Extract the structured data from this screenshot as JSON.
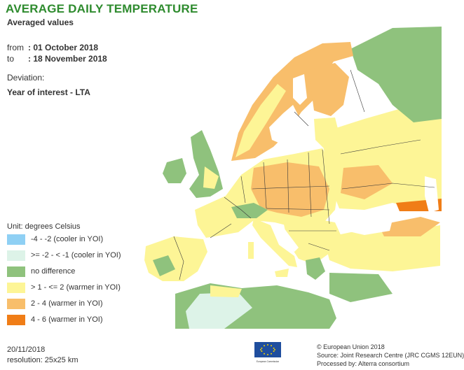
{
  "header": {
    "title": "AVERAGE DAILY TEMPERATURE",
    "subtitle": "Averaged values",
    "from_label": "from",
    "from_value": ": 01 October 2018",
    "to_label": "to",
    "to_value": ": 18 November 2018",
    "deviation_label": "Deviation:",
    "deviation_value": "Year of interest - LTA"
  },
  "legend": {
    "unit": "Unit: degrees Celsius",
    "items": [
      {
        "label": "-4 - -2 (cooler in YOI)",
        "color": "#8fd0f4"
      },
      {
        "label": ">= -2 - < -1 (cooler in YOI)",
        "color": "#ddf3e8"
      },
      {
        "label": "no difference",
        "color": "#8fc27d"
      },
      {
        "label": "> 1 - <= 2 (warmer in YOI)",
        "color": "#fdf596"
      },
      {
        "label": "2 - 4 (warmer in YOI)",
        "color": "#f8be6b"
      },
      {
        "label": "4 - 6 (warmer in YOI)",
        "color": "#f07d17"
      }
    ]
  },
  "footer": {
    "date": "20/11/2018",
    "resolution": "resolution:  25x25 km",
    "credits": [
      "© European Union 2018",
      "Source: Joint Research Centre (JRC CGMS 12EUN)",
      "Processed by: Alterra consortium"
    ],
    "eu_logo_caption": "European Commission"
  },
  "map": {
    "sea_color": "#ffffff",
    "border_color": "#3a3a3a"
  }
}
